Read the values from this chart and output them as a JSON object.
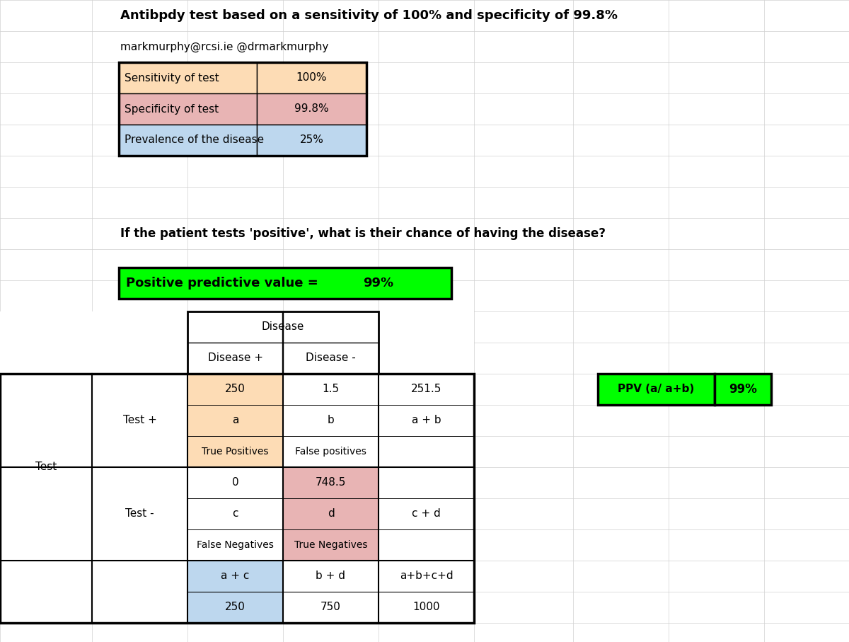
{
  "title1": "Antibpdy test based on a sensitivity of 100% and specificity of 99.8%",
  "title2": "markmurphy@rcsi.ie @drmarkmurphy",
  "sensitivity_label": "Sensitivity of test",
  "sensitivity_value": "100%",
  "specificity_label": "Specificity of test",
  "specificity_value": "99.8%",
  "prevalence_label": "Prevalence of the disease",
  "prevalence_value": "25%",
  "question": "If the patient tests 'positive', what is their chance of having the disease?",
  "ppv_label": "Positive predictive value =",
  "ppv_value": "99%",
  "color_sensitivity": "#FDDCB5",
  "color_specificity": "#E8B4B4",
  "color_prevalence": "#BDD7EE",
  "color_green": "#00FF00",
  "color_tp": "#FDDCB5",
  "color_fp": "#E8B4B4",
  "color_totals_col": "#BDD7EE",
  "color_white": "#FFFFFF",
  "color_grid": "#D0D0D0",
  "bg_color": "#FFFFFF",
  "tp_num": "250",
  "fp_num": "1.5",
  "tp_label": "a",
  "fp_label": "b",
  "tp_text": "True Positives",
  "fp_text": "False positives",
  "fn_num": "0",
  "tn_num": "748.5",
  "fn_label": "c",
  "tn_label": "d",
  "fn_text": "False Negatives",
  "tn_text": "True Negatives",
  "row_total_pos": "251.5",
  "col_total_pos": "a + c",
  "col_total_neg": "b + d",
  "col_total_all": "a+b+c+d",
  "col_total_pos_num": "250",
  "col_total_neg_num": "750",
  "col_total_all_num": "1000",
  "row_sum_pos": "a + b",
  "row_sum_neg": "c + d",
  "ppv_box_label": "PPV (a/ a+b)",
  "ppv_box_value": "99%"
}
